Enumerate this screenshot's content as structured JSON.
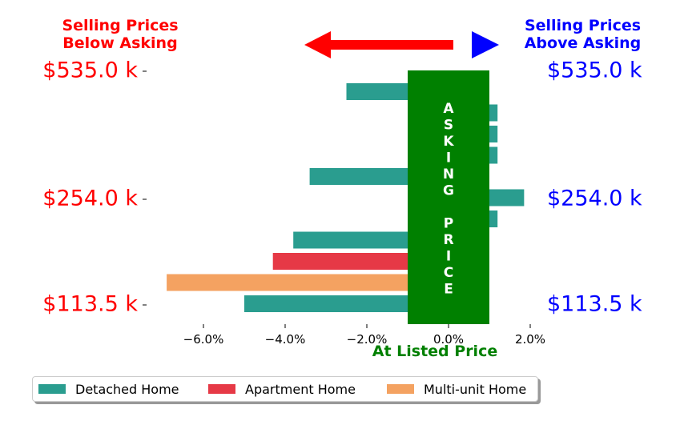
{
  "header": {
    "left_line1": "Selling Prices",
    "left_line2": "Below Asking",
    "right_line1": "Selling Prices",
    "right_line2": "Above Asking"
  },
  "colors": {
    "below": "#ff0000",
    "above": "#0000ff",
    "asking_band": "#008000",
    "detached": "#2a9d8f",
    "apartment": "#e63946",
    "multiunit": "#f4a261"
  },
  "chart_data": {
    "type": "bar",
    "orientation": "horizontal",
    "xlabel": "At Listed Price",
    "xlim": [
      -7.0,
      2.4
    ],
    "x_ticks": [
      "−6.0%",
      "−4.0%",
      "−2.0%",
      "0.0%",
      "2.0%"
    ],
    "x_tick_values": [
      -6,
      -4,
      -2,
      0,
      2
    ],
    "y_tick_labels_left": [
      "$535.0 k",
      "$254.0 k",
      "$113.5 k"
    ],
    "y_tick_labels_right": [
      "$535.0 k",
      "$254.0 k",
      "$113.5 k"
    ],
    "y_tick_rows": [
      0,
      6,
      11
    ],
    "band_label": "ASKING PRICE",
    "band_letters": [
      "A",
      "S",
      "K",
      "I",
      "N",
      "G",
      "",
      "P",
      "R",
      "I",
      "C",
      "E"
    ],
    "band_range": [
      -1.0,
      1.0
    ],
    "series_names": [
      "Detached Home",
      "Apartment Home",
      "Multi-unit Home"
    ],
    "bars": [
      {
        "series": 0,
        "value": -2.5
      },
      {
        "series": 0,
        "value": 1.2
      },
      {
        "series": 0,
        "value": 1.2
      },
      {
        "series": 0,
        "value": 1.2
      },
      {
        "series": 0,
        "value": -3.4
      },
      {
        "series": 0,
        "value": 1.85
      },
      {
        "series": 0,
        "value": 1.2
      },
      {
        "series": 0,
        "value": -3.8
      },
      {
        "series": 1,
        "value": -4.3
      },
      {
        "series": 2,
        "value": -6.9
      },
      {
        "series": 0,
        "value": -5.0
      }
    ],
    "legend_position": "lower-center"
  },
  "legend": {
    "items": [
      "Detached Home",
      "Apartment Home",
      "Multi-unit Home"
    ]
  }
}
